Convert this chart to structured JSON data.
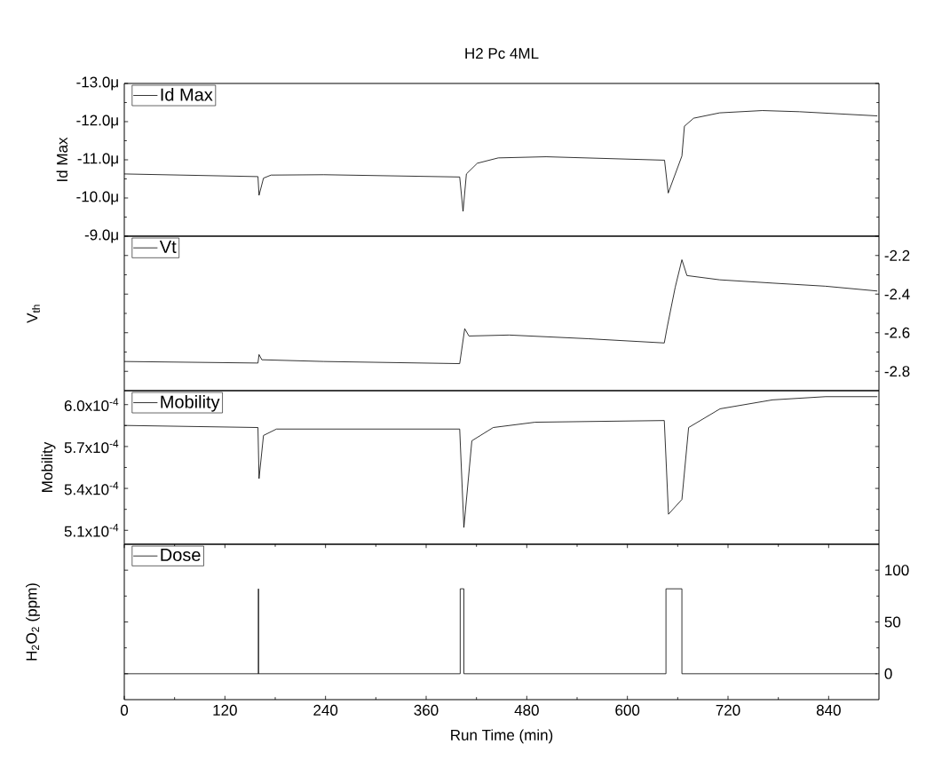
{
  "chart_data": [
    {
      "type": "line",
      "title": "H2 Pc 4ML",
      "ylabel": "Id Max",
      "legend": "top left",
      "tick_labels": "y",
      "xlim": [
        0,
        900
      ],
      "ylim": [
        -9,
        -13
      ],
      "yticks": [
        {
          "value": -9,
          "label": "-9.0μ"
        },
        {
          "value": -10,
          "label": "-10.0μ"
        },
        {
          "value": -11,
          "label": "-11.0μ"
        },
        {
          "value": -12,
          "label": "-12.0μ"
        },
        {
          "value": -13,
          "label": "-13.0μ"
        }
      ],
      "series": [
        {
          "name": "Id Max",
          "color": "#000000",
          "x": [
            0,
            159.4,
            160.7,
            166,
            175,
            238,
            400,
            404,
            408,
            421,
            446,
            503,
            644.3,
            648.7,
            665,
            668,
            679,
            710,
            761,
            805,
            898
          ],
          "values": [
            -10.63,
            -10.56,
            -10.07,
            -10.52,
            -10.6,
            -10.61,
            -10.55,
            -9.65,
            -10.63,
            -10.91,
            -11.05,
            -11.08,
            -10.99,
            -10.13,
            -11.1,
            -11.88,
            -12.09,
            -12.23,
            -12.29,
            -12.26,
            -12.15
          ]
        }
      ]
    },
    {
      "type": "line",
      "ylabel": "V$_{th}$",
      "legend": "top left",
      "tick_labels": "y",
      "xlim": [
        0,
        900
      ],
      "y2lim": [
        -2.9,
        -2.1
      ],
      "y2ticks": [
        -2.8,
        -2.6,
        -2.4,
        -2.2
      ],
      "series": [
        {
          "name": "Vt",
          "color": "#000000",
          "axis": "y2",
          "x": [
            0,
            159.4,
            160.7,
            164,
            238,
            400,
            406,
            411,
            459,
            553,
            644,
            647.5,
            657,
            665,
            671,
            710,
            773,
            836,
            898
          ],
          "values": [
            -2.749,
            -2.757,
            -2.713,
            -2.74,
            -2.749,
            -2.76,
            -2.579,
            -2.617,
            -2.612,
            -2.631,
            -2.653,
            -2.57,
            -2.365,
            -2.222,
            -2.304,
            -2.326,
            -2.343,
            -2.359,
            -2.384
          ]
        }
      ]
    },
    {
      "type": "line",
      "ylabel": "Mobility",
      "legend": "top left",
      "tick_labels": "y",
      "xlim": [
        0,
        900
      ],
      "ylim": [
        0.0005,
        0.00061
      ],
      "yticks": [
        {
          "value": 0.00051,
          "label": "5.1x10$^{-4}$"
        },
        {
          "value": 0.00054,
          "label": "5.4x10$^{-4}$"
        },
        {
          "value": 0.00057,
          "label": "5.7x10$^{-4}$"
        },
        {
          "value": 0.0006,
          "label": "6.0x10$^{-4}$"
        }
      ],
      "series": [
        {
          "name": "Mobility",
          "color": "#000000",
          "x": [
            0,
            159.4,
            160.7,
            166,
            181.5,
            400,
            405,
            414.5,
            440,
            490,
            644,
            649,
            665,
            673,
            710.5,
            773,
            836.4,
            898
          ],
          "values": [
            0.0005851,
            0.0005836,
            0.000547,
            0.0005779,
            0.0005825,
            0.0005825,
            0.000512,
            0.0005741,
            0.0005836,
            0.0005874,
            0.0005886,
            0.0005215,
            0.0005321,
            0.0005836,
            0.000597,
            0.0006034,
            0.0006057,
            0.0006057
          ]
        }
      ]
    },
    {
      "type": "line",
      "ylabel": "H$_{2}$O$_{2}$ (ppm)",
      "xlabel": "Run Time (min)",
      "legend": "top left",
      "xlim": [
        0,
        900
      ],
      "xticks": [
        0,
        120,
        240,
        360,
        480,
        600,
        720,
        840
      ],
      "y2lim": [
        -25,
        125
      ],
      "y2ticks": [
        0,
        50,
        100
      ],
      "series": [
        {
          "name": "Dose",
          "color": "#000000",
          "axis": "y2",
          "x": [
            0,
            160,
            160,
            160,
            400.6,
            400.6,
            405,
            405,
            646,
            646,
            665,
            665,
            898
          ],
          "values": [
            0,
            0,
            82,
            0,
            0,
            82,
            82,
            0,
            0,
            82,
            82,
            0,
            0
          ]
        }
      ]
    }
  ]
}
